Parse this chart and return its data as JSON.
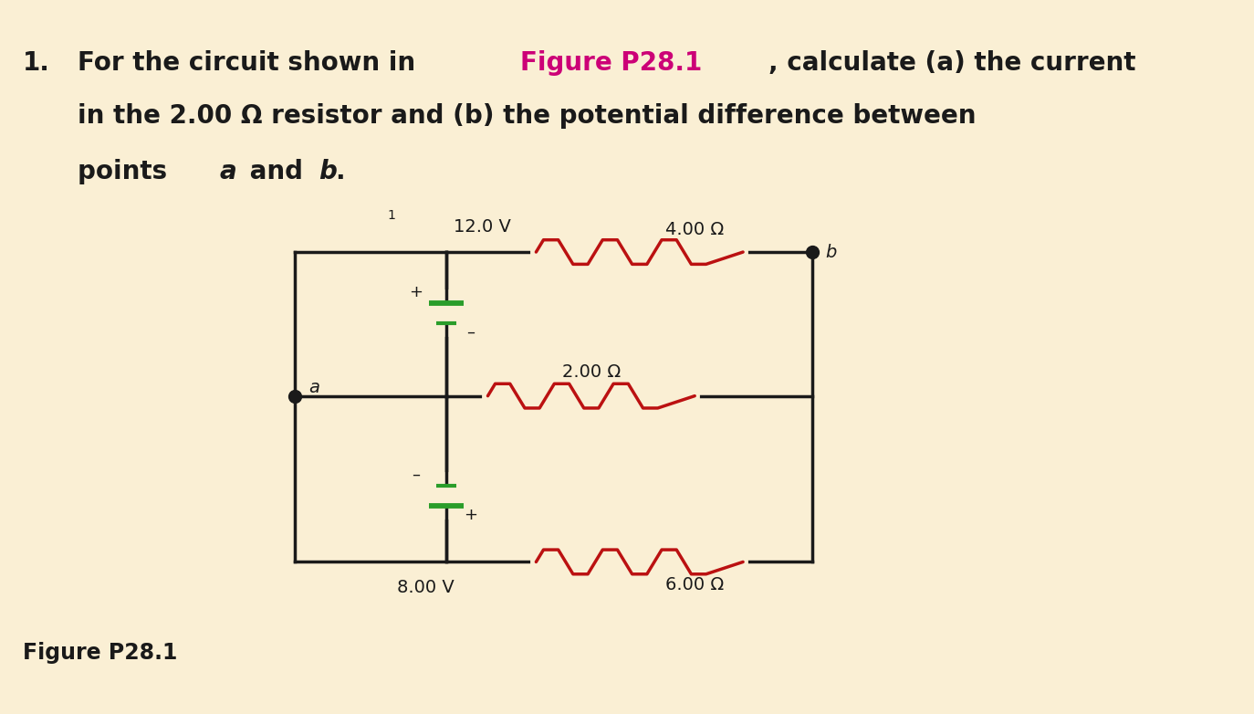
{
  "bg_color": "#faefd4",
  "wire_color": "#1a1a1a",
  "resistor_color": "#bb1111",
  "battery_color": "#2a9d2a",
  "dot_color": "#1a1a1a",
  "text_color": "#1a1a1a",
  "highlight_color": "#cc0077",
  "label_12V": "12.0 V",
  "label_8V": "8.00 V",
  "label_4ohm": "4.00 Ω",
  "label_2ohm": "2.00 Ω",
  "label_6ohm": "6.00 Ω",
  "label_a": "a",
  "label_b": "b",
  "label_1": "1",
  "plus_12": "+",
  "minus_12": "–",
  "plus_8": "+",
  "minus_8": "–",
  "fs_circuit": 14,
  "fs_main": 20,
  "fs_caption": 17,
  "lw_wire": 2.5,
  "lw_resistor": 2.5,
  "lw_battery": 3.0
}
